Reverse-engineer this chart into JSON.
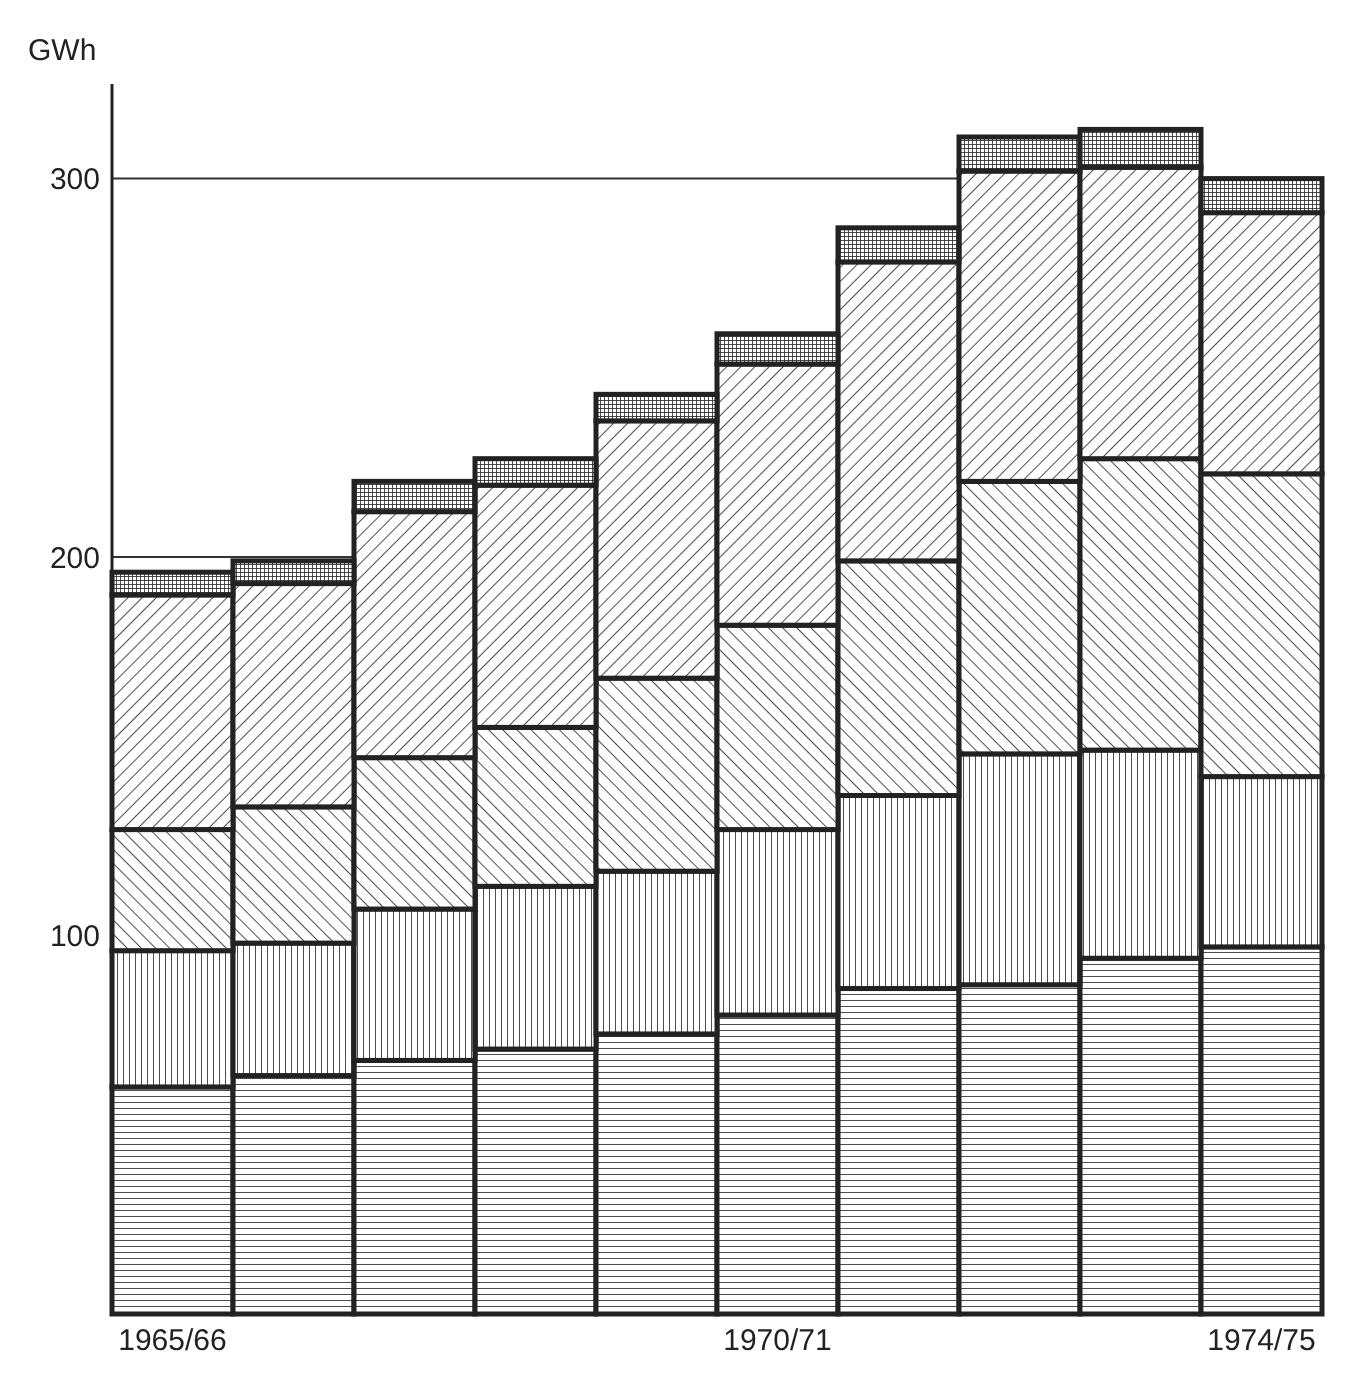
{
  "chart_data": {
    "type": "bar",
    "stacked": true,
    "ylabel": "GWh",
    "categories": [
      "1965/66",
      null,
      null,
      null,
      null,
      "1970/71",
      null,
      null,
      null,
      "1974/75"
    ],
    "series": [
      {
        "color": "#222222",
        "values": [
          60,
          63,
          67,
          70,
          74,
          79,
          86,
          87,
          94,
          97
        ]
      },
      {
        "color": "#222222",
        "values": [
          36,
          35,
          40,
          43,
          43,
          49,
          51,
          61,
          55,
          45
        ]
      },
      {
        "color": "#222222",
        "values": [
          32,
          36,
          40,
          42,
          51,
          54,
          62,
          72,
          77,
          80
        ]
      },
      {
        "color": "#222222",
        "values": [
          62,
          59,
          65,
          64,
          68,
          69,
          79,
          82,
          77,
          69
        ]
      },
      {
        "color": "#222222",
        "values": [
          6,
          6,
          8,
          7,
          7,
          8,
          9,
          9,
          10,
          9
        ]
      }
    ],
    "ylim": [
      0,
      325
    ],
    "yticks": [
      100,
      200,
      300
    ],
    "grid": "y"
  }
}
